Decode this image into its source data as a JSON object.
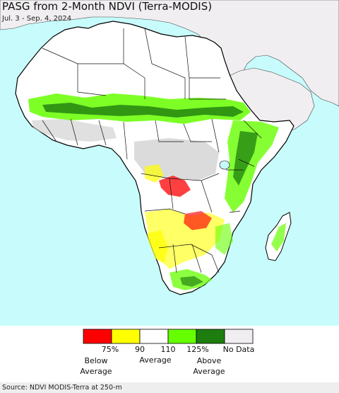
{
  "map": {
    "title": "PASG from 2-Month NDVI (Terra-MODIS)",
    "subtitle": "Jul. 3 - Sep. 4, 2024",
    "source": "Source: NDVI MODIS-Terra at 250-m"
  },
  "legend": {
    "swatches": [
      {
        "color": "#ff0000",
        "name": "below-75"
      },
      {
        "color": "#ffff00",
        "name": "75-90"
      },
      {
        "color": "#ffffff",
        "name": "90-110"
      },
      {
        "color": "#66ff00",
        "name": "110-125"
      },
      {
        "color": "#1e7d0f",
        "name": "above-125"
      },
      {
        "color": "#f0eef0",
        "name": "no-data"
      }
    ],
    "ticks": [
      "75%",
      "90",
      "110",
      "125%",
      "No Data"
    ],
    "categories": [
      "Below\nAverage",
      "Average",
      "Above\nAverage"
    ]
  },
  "colors": {
    "ocean": "#c8fcfc",
    "land": "#ffffff",
    "nodata": "#f0eef0",
    "border": "#000000"
  }
}
